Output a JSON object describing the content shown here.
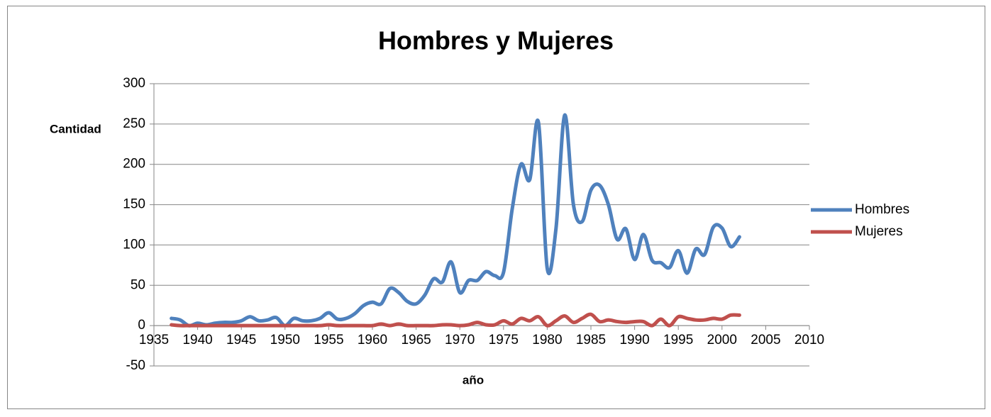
{
  "chart_data": {
    "type": "line",
    "title": "Hombres y Mujeres",
    "x_label": "año",
    "y_label": "Cantidad",
    "x": [
      1937,
      1938,
      1939,
      1940,
      1941,
      1942,
      1943,
      1944,
      1945,
      1946,
      1947,
      1948,
      1949,
      1950,
      1951,
      1952,
      1953,
      1954,
      1955,
      1956,
      1957,
      1958,
      1959,
      1960,
      1961,
      1962,
      1963,
      1964,
      1965,
      1966,
      1967,
      1968,
      1969,
      1970,
      1971,
      1972,
      1973,
      1974,
      1975,
      1976,
      1977,
      1978,
      1979,
      1980,
      1981,
      1982,
      1983,
      1984,
      1985,
      1986,
      1987,
      1988,
      1989,
      1990,
      1991,
      1992,
      1993,
      1994,
      1995,
      1996,
      1997,
      1998,
      1999,
      2000,
      2001,
      2002
    ],
    "series": [
      {
        "name": "Hombres",
        "color": "#4f81bd",
        "values": [
          9,
          7,
          0,
          3,
          1,
          3,
          4,
          4,
          6,
          11,
          6,
          7,
          10,
          0,
          9,
          6,
          6,
          9,
          16,
          8,
          9,
          15,
          25,
          29,
          27,
          46,
          41,
          30,
          27,
          38,
          58,
          54,
          79,
          41,
          56,
          56,
          67,
          62,
          66,
          145,
          200,
          181,
          252,
          71,
          120,
          261,
          150,
          129,
          168,
          174,
          150,
          107,
          120,
          82,
          113,
          81,
          78,
          72,
          93,
          65,
          95,
          88,
          122,
          121,
          98,
          110
        ]
      },
      {
        "name": "Mujeres",
        "color": "#c0504d",
        "values": [
          1,
          0,
          0,
          0,
          0,
          0,
          0,
          0,
          0,
          0,
          0,
          0,
          0,
          0,
          0,
          0,
          0,
          0,
          1,
          0,
          0,
          0,
          0,
          0,
          2,
          0,
          2,
          0,
          0,
          0,
          0,
          1,
          1,
          0,
          1,
          4,
          1,
          1,
          6,
          2,
          9,
          6,
          11,
          0,
          6,
          12,
          4,
          9,
          14,
          5,
          7,
          5,
          4,
          5,
          5,
          0,
          8,
          0,
          11,
          9,
          7,
          7,
          9,
          8,
          13,
          13
        ]
      }
    ],
    "xlim": [
      1935,
      2010
    ],
    "xticks": [
      1935,
      1940,
      1945,
      1950,
      1955,
      1960,
      1965,
      1970,
      1975,
      1980,
      1985,
      1990,
      1995,
      2000,
      2005,
      2010
    ],
    "ylim": [
      -50,
      300
    ],
    "yticks": [
      -50,
      0,
      50,
      100,
      150,
      200,
      250,
      300
    ],
    "grid": true,
    "legend": "right"
  }
}
